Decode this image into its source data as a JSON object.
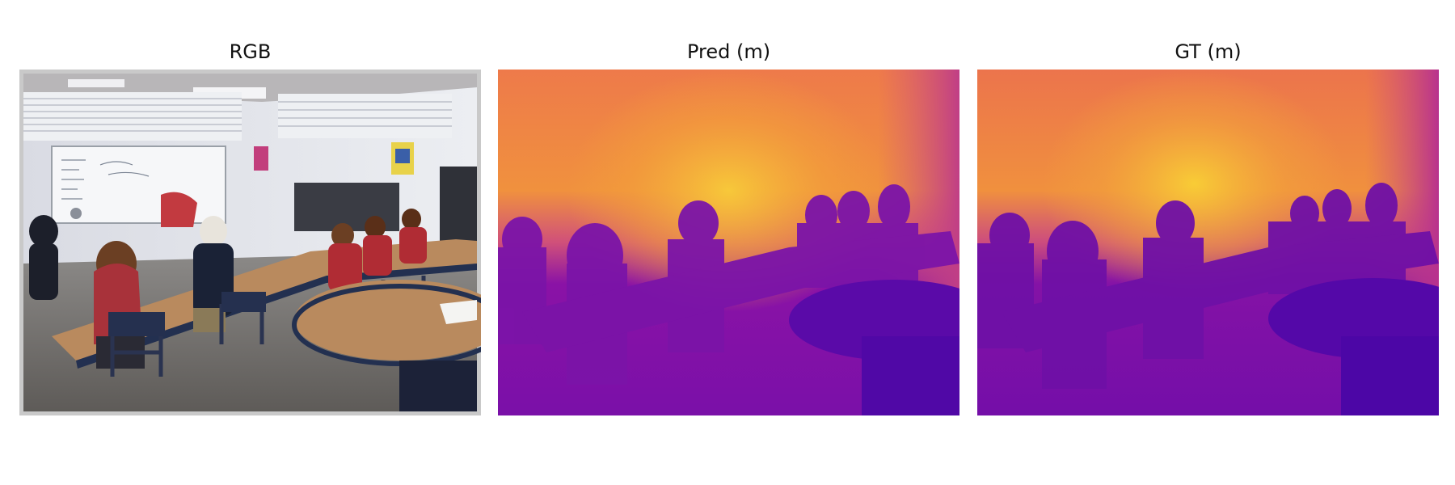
{
  "figure": {
    "panels": [
      {
        "id": "rgb",
        "title": "RGB",
        "content": "classroom photo with students seated at tables facing a whiteboard"
      },
      {
        "id": "pred",
        "title": "Pred (m)",
        "content": "predicted depth map, plasma colormap"
      },
      {
        "id": "gt",
        "title": "GT (m)",
        "content": "ground-truth depth map, plasma colormap"
      }
    ],
    "colormap": {
      "name": "plasma",
      "near": "#4a06a6",
      "mid": "#d6457a",
      "far": "#f7d23a"
    }
  }
}
